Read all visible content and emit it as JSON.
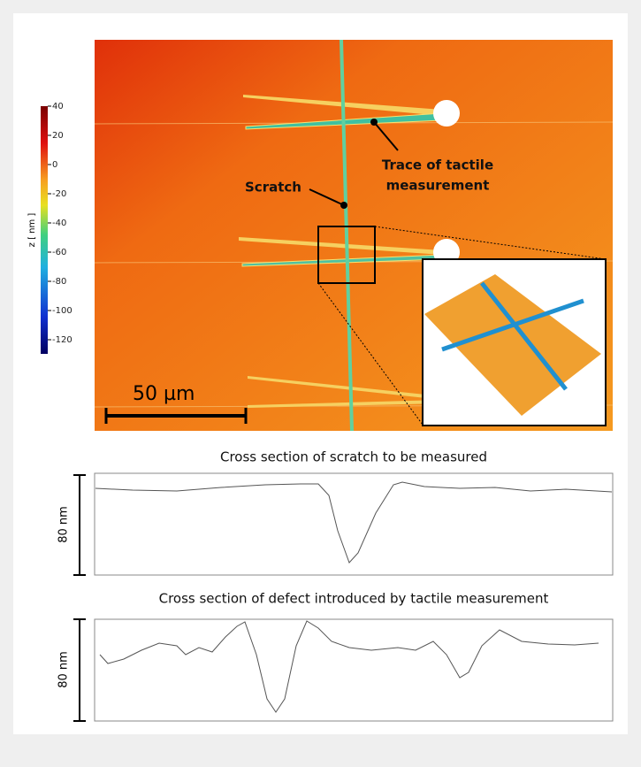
{
  "colorbar": {
    "label": "z [ nm ]",
    "ticks": [
      40,
      20,
      0,
      -20,
      -40,
      -60,
      -80,
      -100,
      -120
    ]
  },
  "annotations": {
    "trace": [
      "Trace of tactile",
      "measurement"
    ],
    "scratch": "Scratch",
    "scale_bar": "50 µm"
  },
  "profiles": [
    {
      "title": "Cross section of scratch to be measured",
      "scale": "80 nm"
    },
    {
      "title": "Cross section of defect introduced by tactile measurement",
      "scale": "80 nm"
    }
  ]
}
